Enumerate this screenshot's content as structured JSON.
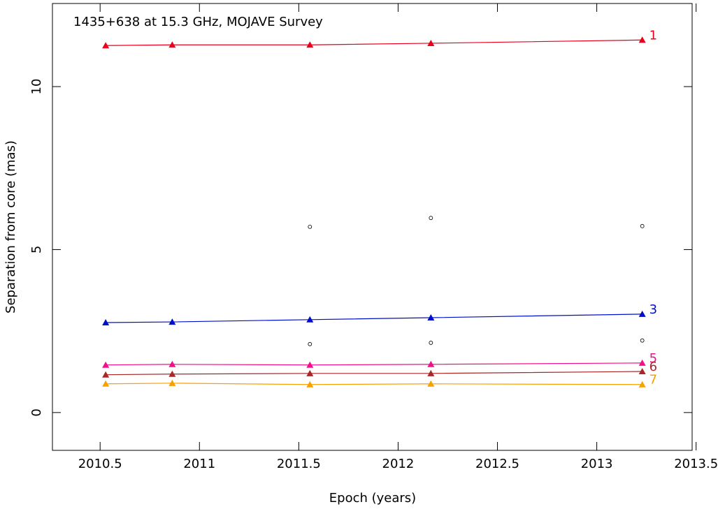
{
  "chart_data": {
    "type": "line",
    "title": "1435+638 at 15.3 GHz, MOJAVE Survey",
    "x_label": "Epoch (years)",
    "y_label": "Separation from core (mas)",
    "x": [
      2010.528,
      2010.863,
      2011.556,
      2012.165,
      2013.229
    ],
    "series": [
      {
        "name": "1",
        "color": "#e8001c",
        "values": [
          11.26,
          11.28,
          11.28,
          11.33,
          11.43
        ]
      },
      {
        "name": "3",
        "color": "#0010c8",
        "values": [
          2.76,
          2.78,
          2.85,
          2.91,
          3.02
        ]
      },
      {
        "name": "5",
        "color": "#f0108c",
        "values": [
          1.46,
          1.48,
          1.46,
          1.48,
          1.52
        ]
      },
      {
        "name": "6",
        "color": "#a82828",
        "values": [
          1.16,
          1.18,
          1.2,
          1.2,
          1.26
        ]
      },
      {
        "name": "7",
        "color": "#f8a000",
        "values": [
          0.88,
          0.9,
          0.86,
          0.88,
          0.86
        ]
      }
    ],
    "other_components": [
      {
        "x": [
          2011.556,
          2012.165,
          2013.229
        ],
        "values": [
          5.7,
          5.97,
          5.72
        ]
      },
      {
        "x": [
          2011.556,
          2012.165,
          2013.229
        ],
        "values": [
          2.1,
          2.14,
          2.21
        ]
      }
    ],
    "xlim": [
      2010.26,
      2013.48
    ],
    "ylim": [
      -1.16,
      12.55
    ],
    "xticks": [
      2010.5,
      2011,
      2011.5,
      2012,
      2012.5,
      2013,
      2013.5
    ],
    "yticks": [
      0,
      5,
      10
    ]
  }
}
